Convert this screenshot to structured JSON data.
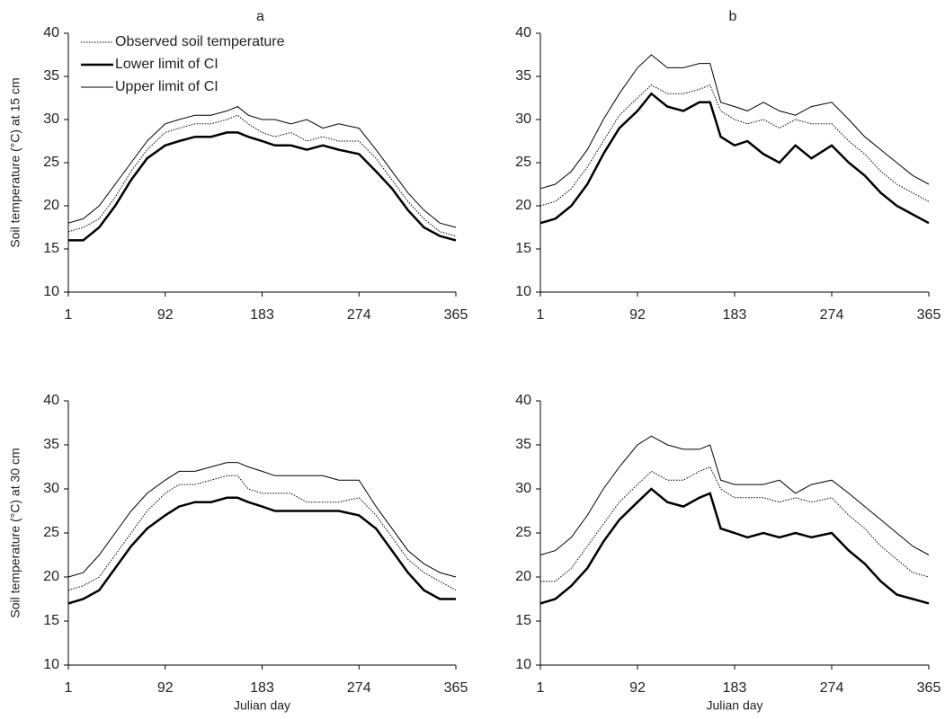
{
  "chart_data": [
    {
      "type": "line",
      "title": "a",
      "ylabel": "Soil  temperature (°C) at 15 cm",
      "x": [
        1,
        15,
        30,
        45,
        60,
        75,
        92,
        105,
        120,
        135,
        150,
        160,
        170,
        183,
        195,
        210,
        225,
        240,
        255,
        274,
        290,
        305,
        320,
        335,
        350,
        365
      ],
      "xlim": [
        1,
        365
      ],
      "xticks": [
        1,
        92,
        183,
        274,
        365
      ],
      "ylim": [
        10,
        40
      ],
      "yticks": [
        10,
        15,
        20,
        25,
        30,
        35,
        40
      ],
      "legend": "top-left",
      "series": [
        {
          "name": "Observed soil temperature",
          "color": "#000000",
          "line_style": "dotted",
          "line_width": 1,
          "values": [
            17,
            17.5,
            18.5,
            21,
            24,
            26.5,
            28.5,
            29,
            29.5,
            29.5,
            30,
            30.5,
            29.5,
            28.5,
            28,
            28.5,
            27.5,
            28,
            27.5,
            27.5,
            25.5,
            23,
            20.5,
            18.5,
            17,
            16.5
          ]
        },
        {
          "name": "Lower limit of CI",
          "color": "#000000",
          "line_style": "solid",
          "line_width": 2.5,
          "values": [
            16,
            16,
            17.5,
            20,
            23,
            25.5,
            27,
            27.5,
            28,
            28,
            28.5,
            28.5,
            28,
            27.5,
            27,
            27,
            26.5,
            27,
            26.5,
            26,
            24,
            22,
            19.5,
            17.5,
            16.5,
            16
          ]
        },
        {
          "name": "Upper limit of CI",
          "color": "#000000",
          "line_style": "solid",
          "line_width": 1,
          "values": [
            18,
            18.5,
            20,
            22.5,
            25,
            27.5,
            29.5,
            30,
            30.5,
            30.5,
            31,
            31.5,
            30.5,
            30,
            30,
            29.5,
            30,
            29,
            29.5,
            29,
            26.5,
            24,
            21.5,
            19.5,
            18,
            17.5
          ]
        }
      ]
    },
    {
      "type": "line",
      "title": "b",
      "x": [
        1,
        15,
        30,
        45,
        60,
        75,
        92,
        105,
        120,
        135,
        150,
        160,
        170,
        183,
        195,
        210,
        225,
        240,
        255,
        274,
        290,
        305,
        320,
        335,
        350,
        365
      ],
      "xlim": [
        1,
        365
      ],
      "xticks": [
        1,
        92,
        183,
        274,
        365
      ],
      "ylim": [
        10,
        40
      ],
      "yticks": [
        10,
        15,
        20,
        25,
        30,
        35,
        40
      ],
      "series": [
        {
          "color": "#000000",
          "line_style": "dotted",
          "line_width": 1,
          "values": [
            20,
            20.5,
            22,
            24.5,
            27.5,
            30.5,
            32.5,
            34,
            33,
            33,
            33.5,
            34,
            31,
            30,
            29.5,
            30,
            29,
            30,
            29.5,
            29.5,
            27.5,
            26,
            24,
            22.5,
            21.5,
            20.5
          ]
        },
        {
          "color": "#000000",
          "line_style": "solid",
          "line_width": 2.5,
          "values": [
            18,
            18.5,
            20,
            22.5,
            26,
            29,
            31,
            33,
            31.5,
            31,
            32,
            32,
            28,
            27,
            27.5,
            26,
            25,
            27,
            25.5,
            27,
            25,
            23.5,
            21.5,
            20,
            19,
            18
          ]
        },
        {
          "color": "#000000",
          "line_style": "solid",
          "line_width": 1,
          "values": [
            22,
            22.5,
            24,
            26.5,
            30,
            33,
            36,
            37.5,
            36,
            36,
            36.5,
            36.5,
            32,
            31.5,
            31,
            32,
            31,
            30.5,
            31.5,
            32,
            30,
            28,
            26.5,
            25,
            23.5,
            22.5
          ]
        }
      ]
    },
    {
      "type": "line",
      "ylabel": "Soil  temperature (°C) at 30 cm",
      "xlabel": "Julian day",
      "x": [
        1,
        15,
        30,
        45,
        60,
        75,
        92,
        105,
        120,
        135,
        150,
        160,
        170,
        183,
        195,
        210,
        225,
        240,
        255,
        274,
        290,
        305,
        320,
        335,
        350,
        365
      ],
      "xlim": [
        1,
        365
      ],
      "xticks": [
        1,
        92,
        183,
        274,
        365
      ],
      "ylim": [
        10,
        40
      ],
      "yticks": [
        10,
        15,
        20,
        25,
        30,
        35,
        40
      ],
      "series": [
        {
          "color": "#000000",
          "line_style": "dotted",
          "line_width": 1,
          "values": [
            18.5,
            19,
            20,
            22.5,
            25,
            27.5,
            29.5,
            30.5,
            30.5,
            31,
            31.5,
            31.5,
            30,
            29.5,
            29.5,
            29.5,
            28.5,
            28.5,
            28.5,
            29,
            27,
            24.5,
            22,
            20.5,
            19.5,
            18.5
          ]
        },
        {
          "color": "#000000",
          "line_style": "solid",
          "line_width": 2.5,
          "values": [
            17,
            17.5,
            18.5,
            21,
            23.5,
            25.5,
            27,
            28,
            28.5,
            28.5,
            29,
            29,
            28.5,
            28,
            27.5,
            27.5,
            27.5,
            27.5,
            27.5,
            27,
            25.5,
            23,
            20.5,
            18.5,
            17.5,
            17.5
          ]
        },
        {
          "color": "#000000",
          "line_style": "solid",
          "line_width": 1,
          "values": [
            20,
            20.5,
            22.5,
            25,
            27.5,
            29.5,
            31,
            32,
            32,
            32.5,
            33,
            33,
            32.5,
            32,
            31.5,
            31.5,
            31.5,
            31.5,
            31,
            31,
            28,
            25.5,
            23,
            21.5,
            20.5,
            20
          ]
        }
      ]
    },
    {
      "type": "line",
      "xlabel": "Julian day",
      "x": [
        1,
        15,
        30,
        45,
        60,
        75,
        92,
        105,
        120,
        135,
        150,
        160,
        170,
        183,
        195,
        210,
        225,
        240,
        255,
        274,
        290,
        305,
        320,
        335,
        350,
        365
      ],
      "xlim": [
        1,
        365
      ],
      "xticks": [
        1,
        92,
        183,
        274,
        365
      ],
      "ylim": [
        10,
        40
      ],
      "yticks": [
        10,
        15,
        20,
        25,
        30,
        35,
        40
      ],
      "series": [
        {
          "color": "#000000",
          "line_style": "dotted",
          "line_width": 1,
          "values": [
            19.5,
            19.5,
            21,
            23.5,
            26,
            28.5,
            30.5,
            32,
            31,
            31,
            32,
            32.5,
            30,
            29,
            29,
            29,
            28.5,
            29,
            28.5,
            29,
            27,
            25.5,
            23.5,
            22,
            20.5,
            20
          ]
        },
        {
          "color": "#000000",
          "line_style": "solid",
          "line_width": 2.5,
          "values": [
            17,
            17.5,
            19,
            21,
            24,
            26.5,
            28.5,
            30,
            28.5,
            28,
            29,
            29.5,
            25.5,
            25,
            24.5,
            25,
            24.5,
            25,
            24.5,
            25,
            23,
            21.5,
            19.5,
            18,
            17.5,
            17
          ]
        },
        {
          "color": "#000000",
          "line_style": "solid",
          "line_width": 1,
          "values": [
            22.5,
            23,
            24.5,
            27,
            30,
            32.5,
            35,
            36,
            35,
            34.5,
            34.5,
            35,
            31,
            30.5,
            30.5,
            30.5,
            31,
            29.5,
            30.5,
            31,
            29.5,
            28,
            26.5,
            25,
            23.5,
            22.5
          ]
        }
      ]
    }
  ]
}
